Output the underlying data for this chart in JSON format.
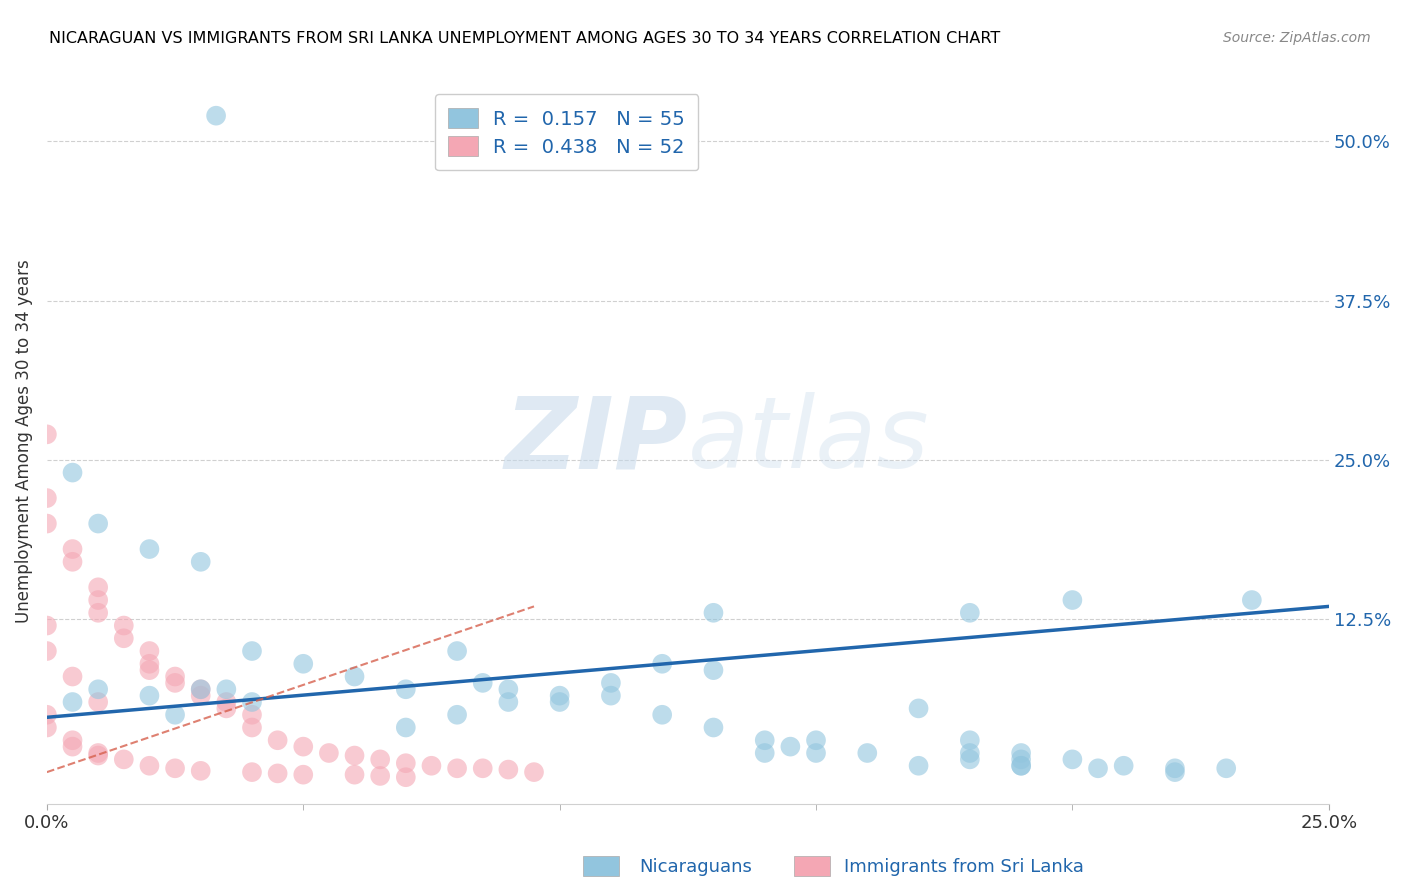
{
  "title": "NICARAGUAN VS IMMIGRANTS FROM SRI LANKA UNEMPLOYMENT AMONG AGES 30 TO 34 YEARS CORRELATION CHART",
  "source": "Source: ZipAtlas.com",
  "ylabel_label": "Unemployment Among Ages 30 to 34 years",
  "right_yticks": [
    "50.0%",
    "37.5%",
    "25.0%",
    "12.5%"
  ],
  "right_ytick_vals": [
    0.5,
    0.375,
    0.25,
    0.125
  ],
  "xmin": 0.0,
  "xmax": 0.25,
  "ymin": -0.02,
  "ymax": 0.55,
  "watermark_zip": "ZIP",
  "watermark_atlas": "atlas",
  "legend_R1": "R =  0.157",
  "legend_N1": "N = 55",
  "legend_R2": "R =  0.438",
  "legend_N2": "N = 52",
  "blue_color": "#92c5de",
  "pink_color": "#f4a7b4",
  "trendline_blue_color": "#2166ac",
  "trendline_pink_color": "#d6604d",
  "legend_text_color": "#2166ac",
  "grid_color": "#d0d0d0",
  "blue_scatter_x": [
    0.033,
    0.005,
    0.01,
    0.02,
    0.03,
    0.04,
    0.05,
    0.06,
    0.07,
    0.08,
    0.085,
    0.09,
    0.1,
    0.11,
    0.12,
    0.13,
    0.14,
    0.15,
    0.16,
    0.17,
    0.18,
    0.19,
    0.2,
    0.21,
    0.22,
    0.23,
    0.12,
    0.13,
    0.18,
    0.07,
    0.08,
    0.09,
    0.1,
    0.11,
    0.14,
    0.145,
    0.15,
    0.18,
    0.19,
    0.205,
    0.19,
    0.2,
    0.005,
    0.01,
    0.02,
    0.025,
    0.03,
    0.035,
    0.04,
    0.18,
    0.19,
    0.13,
    0.17,
    0.22,
    0.235
  ],
  "blue_scatter_y": [
    0.52,
    0.24,
    0.2,
    0.18,
    0.17,
    0.1,
    0.09,
    0.08,
    0.07,
    0.1,
    0.075,
    0.07,
    0.065,
    0.075,
    0.05,
    0.04,
    0.03,
    0.02,
    0.02,
    0.01,
    0.015,
    0.01,
    0.015,
    0.01,
    0.008,
    0.008,
    0.09,
    0.13,
    0.13,
    0.04,
    0.05,
    0.06,
    0.06,
    0.065,
    0.02,
    0.025,
    0.03,
    0.02,
    0.01,
    0.008,
    0.015,
    0.14,
    0.06,
    0.07,
    0.065,
    0.05,
    0.07,
    0.07,
    0.06,
    0.03,
    0.02,
    0.085,
    0.055,
    0.005,
    0.14
  ],
  "pink_scatter_x": [
    0.0,
    0.0,
    0.0,
    0.005,
    0.005,
    0.01,
    0.01,
    0.01,
    0.015,
    0.015,
    0.02,
    0.02,
    0.02,
    0.025,
    0.025,
    0.03,
    0.03,
    0.035,
    0.035,
    0.04,
    0.04,
    0.045,
    0.05,
    0.055,
    0.06,
    0.065,
    0.07,
    0.075,
    0.08,
    0.085,
    0.09,
    0.095,
    0.0,
    0.0,
    0.005,
    0.005,
    0.01,
    0.01,
    0.015,
    0.02,
    0.025,
    0.03,
    0.04,
    0.045,
    0.05,
    0.06,
    0.065,
    0.07,
    0.0,
    0.0,
    0.005,
    0.01
  ],
  "pink_scatter_y": [
    0.27,
    0.22,
    0.2,
    0.18,
    0.17,
    0.15,
    0.14,
    0.13,
    0.12,
    0.11,
    0.1,
    0.09,
    0.085,
    0.08,
    0.075,
    0.07,
    0.065,
    0.06,
    0.055,
    0.05,
    0.04,
    0.03,
    0.025,
    0.02,
    0.018,
    0.015,
    0.012,
    0.01,
    0.008,
    0.008,
    0.007,
    0.005,
    0.05,
    0.04,
    0.03,
    0.025,
    0.02,
    0.018,
    0.015,
    0.01,
    0.008,
    0.006,
    0.005,
    0.004,
    0.003,
    0.003,
    0.002,
    0.001,
    0.12,
    0.1,
    0.08,
    0.06
  ],
  "blue_trend_x": [
    0.0,
    0.25
  ],
  "blue_trend_y": [
    0.048,
    0.135
  ],
  "pink_trend_x": [
    0.0,
    0.095
  ],
  "pink_trend_y": [
    0.005,
    0.135
  ],
  "bottom_label1": "Nicaraguans",
  "bottom_label2": "Immigrants from Sri Lanka"
}
